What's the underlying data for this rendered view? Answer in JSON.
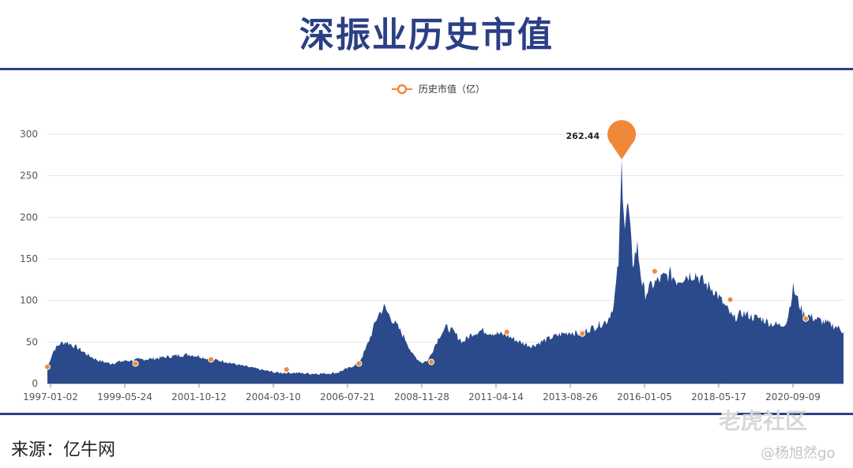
{
  "header": {
    "title": "深振业历史市值"
  },
  "footer": {
    "source": "来源：亿牛网",
    "watermark_site": "老虎社区",
    "watermark_user": "@杨旭然go"
  },
  "colors": {
    "area": "#2b4a8b",
    "marker": "#f0883a",
    "accent": "#2b3f86"
  },
  "chart_data": {
    "type": "area",
    "legend": {
      "label": "历史市值（亿）",
      "placement": "top-center"
    },
    "x_ticks": [
      "1997-01-02",
      "1999-05-24",
      "2001-10-12",
      "2004-03-10",
      "2006-07-21",
      "2008-11-28",
      "2011-04-14",
      "2013-08-26",
      "2016-01-05",
      "2018-05-17",
      "2020-09-09"
    ],
    "y_ticks": [
      "0",
      "50",
      "100",
      "150",
      "200",
      "250",
      "300"
    ],
    "ylim": [
      0,
      300
    ],
    "grid": true,
    "x_range": [
      1997.0,
      2022.3
    ],
    "series": [
      {
        "x": [
          1997.0,
          1997.2,
          1997.4,
          1997.6,
          1997.8,
          1998.0,
          1998.3,
          1998.6,
          1999.0,
          1999.4,
          1999.7,
          2000.0,
          2000.4,
          2000.8,
          2001.2,
          2001.5,
          2001.8,
          2002.2,
          2002.6,
          2003.0,
          2003.5,
          2004.0,
          2004.3,
          2004.8,
          2005.3,
          2005.8,
          2006.2,
          2006.6,
          2006.9,
          2007.1,
          2007.3,
          2007.5,
          2007.7,
          2007.9,
          2008.1,
          2008.4,
          2008.6,
          2008.9,
          2009.1,
          2009.3,
          2009.5,
          2009.7,
          2009.9,
          2010.2,
          2010.5,
          2010.8,
          2011.0,
          2011.3,
          2011.6,
          2012.0,
          2012.4,
          2012.8,
          2013.2,
          2013.6,
          2013.9,
          2014.2,
          2014.5,
          2014.8,
          2015.0,
          2015.15,
          2015.25,
          2015.35,
          2015.45,
          2015.6,
          2015.75,
          2015.9,
          2016.0,
          2016.2,
          2016.5,
          2016.8,
          2017.0,
          2017.3,
          2017.6,
          2017.9,
          2018.2,
          2018.5,
          2018.8,
          2019.1,
          2019.4,
          2019.7,
          2020.0,
          2020.3,
          2020.5,
          2020.7,
          2021.0,
          2021.4,
          2021.8,
          2022.1,
          2022.3
        ],
        "y": [
          20,
          40,
          48,
          50,
          46,
          42,
          34,
          28,
          24,
          27,
          28,
          29,
          30,
          32,
          34,
          35,
          33,
          29,
          27,
          23,
          19,
          15,
          13,
          13,
          12,
          12,
          13,
          19,
          25,
          40,
          60,
          82,
          92,
          80,
          70,
          52,
          35,
          25,
          28,
          45,
          60,
          68,
          62,
          50,
          60,
          64,
          62,
          60,
          58,
          50,
          45,
          52,
          58,
          62,
          60,
          65,
          70,
          76,
          95,
          145,
          262,
          190,
          215,
          145,
          165,
          120,
          108,
          118,
          126,
          132,
          124,
          130,
          132,
          120,
          112,
          95,
          78,
          85,
          80,
          78,
          72,
          70,
          75,
          115,
          85,
          78,
          72,
          68,
          62
        ]
      }
    ],
    "markers": [
      {
        "x": 1997.0,
        "y": 20
      },
      {
        "x": 1999.8,
        "y": 24
      },
      {
        "x": 2002.2,
        "y": 29
      },
      {
        "x": 2004.6,
        "y": 17
      },
      {
        "x": 2006.9,
        "y": 24
      },
      {
        "x": 2009.2,
        "y": 26
      },
      {
        "x": 2011.6,
        "y": 62
      },
      {
        "x": 2014.0,
        "y": 60
      },
      {
        "x": 2016.3,
        "y": 135
      },
      {
        "x": 2018.7,
        "y": 101
      },
      {
        "x": 2021.1,
        "y": 78
      }
    ],
    "peak": {
      "x": 2015.25,
      "y": 262,
      "label": "262.44"
    }
  }
}
